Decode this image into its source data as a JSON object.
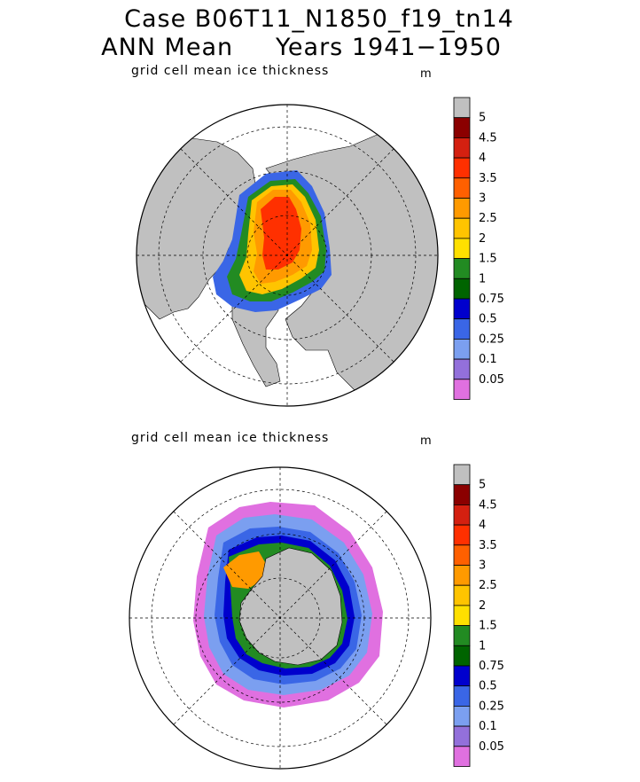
{
  "header": {
    "title_line1": "Case B06T11_N1850_f19_tn14",
    "title_line2": "ANN Mean     Years 1941−1950"
  },
  "colors": {
    "land": "#c0c0c0",
    "ocean": "#ffffff"
  },
  "chart_data": [
    {
      "type": "heatmap",
      "projection": "polar stereographic",
      "hemisphere": "north",
      "subtitle": "grid cell mean ice thickness",
      "units": "m",
      "grid": true,
      "legend_placement": "right",
      "colorbar": {
        "labels": [
          "5",
          "4.5",
          "4",
          "3.5",
          "3",
          "2.5",
          "2",
          "1.5",
          "1",
          "0.75",
          "0.5",
          "0.25",
          "0.1",
          "0.05"
        ],
        "colors": [
          "#c0c0c0",
          "#8b0000",
          "#d42010",
          "#ff3000",
          "#ff6000",
          "#ff9a00",
          "#ffc400",
          "#ffe000",
          "#228b22",
          "#006400",
          "#0000cd",
          "#3a66e6",
          "#7b9ff0",
          "#9370db",
          "#e070e0"
        ]
      }
    },
    {
      "type": "heatmap",
      "projection": "polar stereographic",
      "hemisphere": "south",
      "subtitle": "grid cell mean ice thickness",
      "units": "m",
      "grid": true,
      "legend_placement": "right",
      "colorbar": {
        "labels": [
          "5",
          "4.5",
          "4",
          "3.5",
          "3",
          "2.5",
          "2",
          "1.5",
          "1",
          "0.75",
          "0.5",
          "0.25",
          "0.1",
          "0.05"
        ],
        "colors": [
          "#c0c0c0",
          "#8b0000",
          "#d42010",
          "#ff3000",
          "#ff6000",
          "#ff9a00",
          "#ffc400",
          "#ffe000",
          "#228b22",
          "#006400",
          "#0000cd",
          "#3a66e6",
          "#7b9ff0",
          "#9370db",
          "#e070e0"
        ]
      }
    }
  ]
}
